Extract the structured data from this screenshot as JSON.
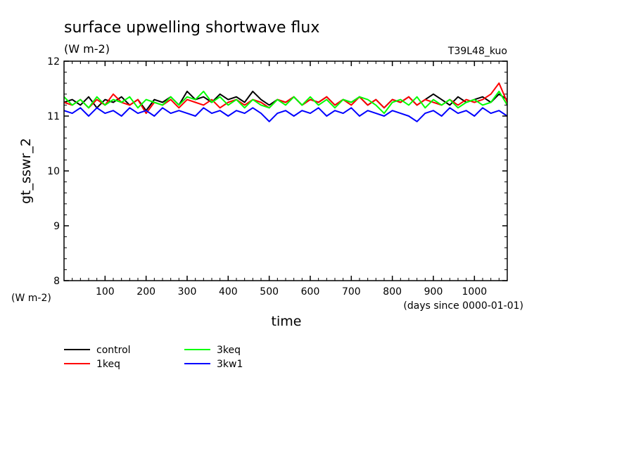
{
  "chart_data": {
    "type": "line",
    "title": "surface upwelling shortwave flux",
    "subtitle": "(W m-2)",
    "run_label": "T39L48_kuo",
    "xlabel": "time",
    "x_units": "(days since 0000-01-01)",
    "ylabel": "gt_sswr_2",
    "y_units": "(W m-2)",
    "xlim": [
      0,
      1080
    ],
    "ylim": [
      8,
      12
    ],
    "xticks": [
      100,
      200,
      300,
      400,
      500,
      600,
      700,
      800,
      900,
      1000
    ],
    "yticks": [
      8,
      9,
      10,
      11,
      12
    ],
    "grid": false,
    "legend_position": "bottom-left",
    "x": [
      0,
      20,
      40,
      60,
      80,
      100,
      120,
      140,
      160,
      180,
      200,
      220,
      240,
      260,
      280,
      300,
      320,
      340,
      360,
      380,
      400,
      420,
      440,
      460,
      480,
      500,
      520,
      540,
      560,
      580,
      600,
      620,
      640,
      660,
      680,
      700,
      720,
      740,
      760,
      780,
      800,
      820,
      840,
      860,
      880,
      900,
      920,
      940,
      960,
      980,
      1000,
      1020,
      1040,
      1060,
      1080
    ],
    "series": [
      {
        "name": "control",
        "color": "#000000",
        "values": [
          11.25,
          11.3,
          11.2,
          11.35,
          11.15,
          11.3,
          11.25,
          11.35,
          11.2,
          11.3,
          11.1,
          11.3,
          11.25,
          11.35,
          11.2,
          11.45,
          11.3,
          11.35,
          11.25,
          11.4,
          11.3,
          11.35,
          11.25,
          11.45,
          11.3,
          11.2,
          11.3,
          11.25,
          11.35,
          11.2,
          11.3,
          11.25,
          11.35,
          11.2,
          11.3,
          11.25,
          11.35,
          11.2,
          11.3,
          11.15,
          11.3,
          11.25,
          11.35,
          11.2,
          11.3,
          11.4,
          11.3,
          11.2,
          11.35,
          11.25,
          11.3,
          11.35,
          11.25,
          11.4,
          11.3
        ]
      },
      {
        "name": "1keq",
        "color": "#ff0000",
        "values": [
          11.25,
          11.2,
          11.3,
          11.15,
          11.3,
          11.2,
          11.4,
          11.25,
          11.2,
          11.3,
          11.05,
          11.25,
          11.2,
          11.3,
          11.15,
          11.3,
          11.25,
          11.2,
          11.3,
          11.15,
          11.25,
          11.3,
          11.2,
          11.3,
          11.25,
          11.15,
          11.3,
          11.25,
          11.35,
          11.2,
          11.3,
          11.25,
          11.35,
          11.2,
          11.3,
          11.2,
          11.35,
          11.2,
          11.3,
          11.15,
          11.3,
          11.25,
          11.35,
          11.2,
          11.3,
          11.25,
          11.2,
          11.3,
          11.2,
          11.3,
          11.25,
          11.3,
          11.4,
          11.6,
          11.25
        ]
      },
      {
        "name": "3keq",
        "color": "#00ff00",
        "values": [
          11.35,
          11.2,
          11.3,
          11.15,
          11.35,
          11.2,
          11.3,
          11.25,
          11.35,
          11.15,
          11.3,
          11.25,
          11.2,
          11.35,
          11.2,
          11.35,
          11.3,
          11.45,
          11.25,
          11.35,
          11.2,
          11.3,
          11.15,
          11.3,
          11.2,
          11.15,
          11.3,
          11.2,
          11.35,
          11.2,
          11.35,
          11.2,
          11.3,
          11.15,
          11.3,
          11.25,
          11.35,
          11.3,
          11.2,
          11.05,
          11.25,
          11.3,
          11.2,
          11.35,
          11.15,
          11.3,
          11.2,
          11.3,
          11.15,
          11.25,
          11.3,
          11.2,
          11.25,
          11.45,
          11.2
        ]
      },
      {
        "name": "3kw1",
        "color": "#0000ff",
        "values": [
          11.1,
          11.05,
          11.15,
          11.0,
          11.15,
          11.05,
          11.1,
          11.0,
          11.15,
          11.05,
          11.1,
          11.0,
          11.15,
          11.05,
          11.1,
          11.05,
          11.0,
          11.15,
          11.05,
          11.1,
          11.0,
          11.1,
          11.05,
          11.15,
          11.05,
          10.9,
          11.05,
          11.1,
          11.0,
          11.1,
          11.05,
          11.15,
          11.0,
          11.1,
          11.05,
          11.15,
          11.0,
          11.1,
          11.05,
          11.0,
          11.1,
          11.05,
          11.0,
          10.9,
          11.05,
          11.1,
          11.0,
          11.15,
          11.05,
          11.1,
          11.0,
          11.15,
          11.05,
          11.1,
          11.0
        ]
      }
    ]
  }
}
